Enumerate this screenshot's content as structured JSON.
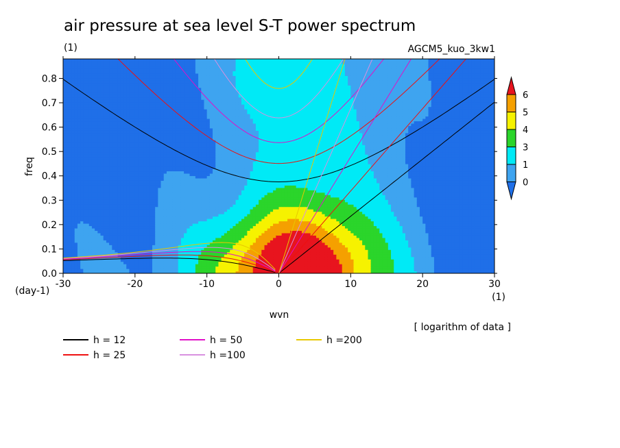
{
  "chart_data": {
    "type": "heatmap",
    "title": "air pressure at sea level S-T power spectrum",
    "subtitle": "(1)",
    "run_label": "AGCM5_kuo_3kw1",
    "xlabel": "wvn",
    "ylabel": "freq",
    "x_unit": "(1)",
    "y_unit": "(day-1)",
    "note": "[ logarithm of data ]",
    "xlim": [
      -30,
      30
    ],
    "ylim": [
      0,
      0.88
    ],
    "x_ticks": [
      -30,
      -20,
      -10,
      0,
      10,
      20,
      30
    ],
    "y_ticks": [
      0.0,
      0.1,
      0.2,
      0.3,
      0.4,
      0.5,
      0.6,
      0.7,
      0.8
    ],
    "x_tick_labels": [
      "-30",
      "-20",
      "-10",
      "0",
      "10",
      "20",
      "30"
    ],
    "y_tick_labels": [
      "0.0",
      "0.1",
      "0.2",
      "0.3",
      "0.4",
      "0.5",
      "0.6",
      "0.7",
      "0.8"
    ],
    "colorbar": {
      "labels": [
        "0",
        "1",
        "3",
        "4",
        "5",
        "6"
      ],
      "colors": [
        "#1f6fe8",
        "#3ea4f0",
        "#00eaf6",
        "#2bd52b",
        "#f6f200",
        "#f5a000",
        "#e8141e"
      ]
    },
    "contour_fill_levels": [
      {
        "level": 0,
        "color": "#1f6fe8"
      },
      {
        "level": 1,
        "color": "#3ea4f0"
      },
      {
        "level": 2,
        "color": "#00eaf6"
      },
      {
        "level": 3,
        "color": "#2bd52b"
      },
      {
        "level": 4,
        "color": "#f6f200"
      },
      {
        "level": 5,
        "color": "#f5a000"
      },
      {
        "level": 6,
        "color": "#e8141e"
      }
    ],
    "dispersion_curves": [
      {
        "label": "h = 12",
        "color": "#000000"
      },
      {
        "label": "h = 25",
        "color": "#ee1010"
      },
      {
        "label": "h = 50",
        "color": "#e010c8"
      },
      {
        "label": "h =100",
        "color": "#d890e0"
      },
      {
        "label": "h =200",
        "color": "#e8c800"
      }
    ]
  }
}
